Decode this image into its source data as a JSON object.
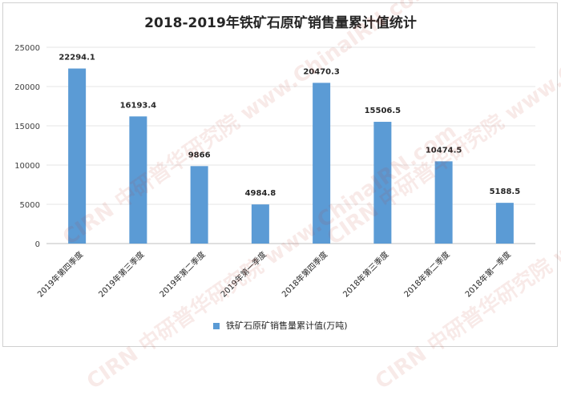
{
  "chart_data": {
    "type": "bar",
    "title": "2018-2019年铁矿石原矿销售量累计值统计",
    "categories": [
      "2019年第四季度",
      "2019年第三季度",
      "2019年第二季度",
      "2019年第一季度",
      "2018年第四季度",
      "2018年第三季度",
      "2018年第二季度",
      "2018年第一季度"
    ],
    "series": [
      {
        "name": "铁矿石原矿销售量累计值(万吨)",
        "values": [
          22294.1,
          16193.4,
          9866,
          4984.8,
          20470.3,
          15506.5,
          10474.5,
          5188.5
        ]
      }
    ],
    "data_labels": [
      "22294.1",
      "16193.4",
      "9866",
      "4984.8",
      "20470.3",
      "15506.5",
      "10474.5",
      "5188.5"
    ],
    "ylim": [
      0,
      25000
    ],
    "yticks": [
      "0",
      "5000",
      "10000",
      "15000",
      "20000",
      "25000"
    ],
    "grid": true,
    "legend_position": "bottom",
    "bar_color": "#5b9bd5"
  },
  "watermark": {
    "text": "CIRN 中研普华研究院 www.ChinaIRN.com"
  }
}
